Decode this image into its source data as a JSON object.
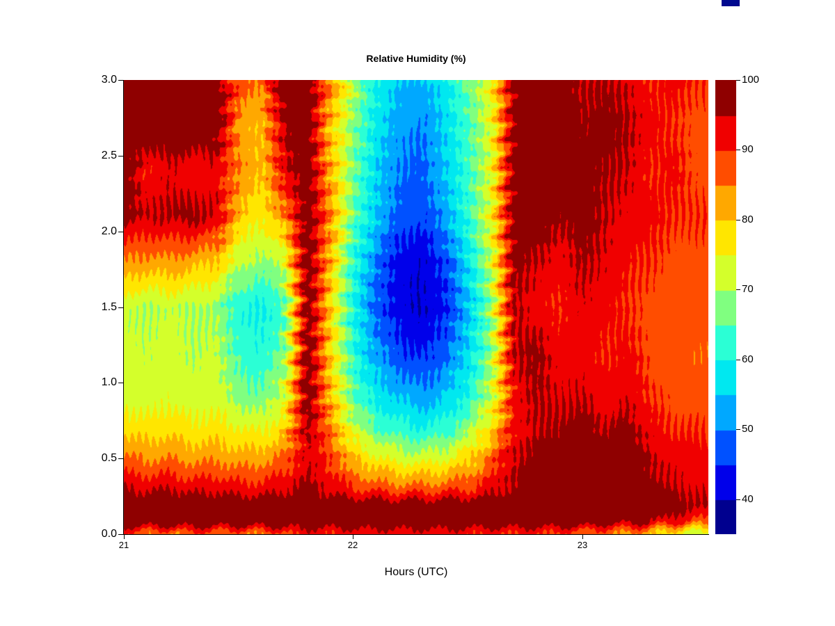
{
  "window": {
    "background": "#ffffff",
    "artifact_color": "#000a8f"
  },
  "chart_data": {
    "type": "heatmap",
    "title": "Relative Humidity (%)",
    "xlabel": "Hours (UTC)",
    "ylabel": "",
    "x_range": [
      21.0,
      23.55
    ],
    "y_range": [
      0.0,
      3.0
    ],
    "x_ticks": [
      21,
      22,
      23
    ],
    "x_tick_labels": [
      "21",
      "22",
      "23"
    ],
    "y_ticks": [
      0.0,
      0.5,
      1.0,
      1.5,
      2.0,
      2.5,
      3.0
    ],
    "y_tick_labels": [
      "0.0",
      "0.5",
      "1.0",
      "1.5",
      "2.0",
      "2.5",
      "3.0"
    ],
    "grid_lines": false,
    "legend_position": "right-colorbar",
    "colorbar": {
      "min": 35,
      "max": 100,
      "step": 5,
      "ticks": [
        40,
        50,
        60,
        70,
        80,
        90,
        100
      ],
      "tick_labels": [
        "40",
        "50",
        "60",
        "70",
        "80",
        "90",
        "100"
      ],
      "band_colors": [
        "#00008F",
        "#0000EA",
        "#0051FF",
        "#00A8FF",
        "#00E8F0",
        "#2BFFD5",
        "#80FF80",
        "#D4FF2B",
        "#FFE600",
        "#FFA800",
        "#FF4D00",
        "#F00000",
        "#8F0000"
      ]
    },
    "grid": {
      "x": [
        21.0,
        21.1,
        21.2,
        21.3,
        21.4,
        21.5,
        21.6,
        21.7,
        21.8,
        21.9,
        22.0,
        22.1,
        22.2,
        22.3,
        22.4,
        22.5,
        22.6,
        22.7,
        22.8,
        22.9,
        23.0,
        23.1,
        23.2,
        23.3,
        23.4,
        23.5
      ],
      "y": [
        0.0,
        0.08,
        0.18,
        0.3,
        0.5,
        0.7,
        0.9,
        1.2,
        1.5,
        1.8,
        2.1,
        2.4,
        2.7,
        3.0
      ],
      "values": [
        [
          88,
          86,
          84,
          88,
          87,
          85,
          86,
          88,
          92,
          90,
          92,
          92,
          92,
          92,
          92,
          91,
          90,
          90,
          90,
          88,
          87,
          85,
          83,
          80,
          75,
          72
        ],
        [
          100,
          100,
          100,
          100,
          100,
          100,
          100,
          100,
          100,
          100,
          100,
          100,
          100,
          100,
          100,
          100,
          100,
          100,
          100,
          100,
          100,
          98,
          97,
          96,
          92,
          88
        ],
        [
          100,
          100,
          100,
          100,
          100,
          100,
          100,
          100,
          100,
          100,
          100,
          100,
          100,
          100,
          100,
          100,
          100,
          100,
          100,
          100,
          100,
          100,
          100,
          100,
          98,
          96
        ],
        [
          95,
          94,
          95,
          93,
          94,
          92,
          92,
          94,
          97,
          93,
          90,
          88,
          87,
          87,
          88,
          89,
          93,
          96,
          98,
          99,
          100,
          99,
          100,
          97,
          95,
          94
        ],
        [
          86,
          84,
          85,
          83,
          84,
          82,
          83,
          86,
          94,
          89,
          80,
          76,
          73,
          72,
          74,
          78,
          86,
          95,
          97,
          98,
          100,
          98,
          100,
          95,
          93,
          92
        ],
        [
          78,
          77,
          78,
          76,
          77,
          75,
          74,
          78,
          97,
          85,
          72,
          65,
          62,
          60,
          62,
          68,
          77,
          92,
          95,
          96,
          98,
          95,
          97,
          92,
          90,
          90
        ],
        [
          73,
          72,
          74,
          72,
          73,
          68,
          66,
          73,
          100,
          81,
          66,
          58,
          55,
          52,
          55,
          61,
          71,
          92,
          96,
          94,
          95,
          92,
          94,
          90,
          88,
          87
        ],
        [
          72,
          71,
          73,
          70,
          72,
          63,
          61,
          67,
          100,
          79,
          62,
          52,
          46,
          44,
          48,
          56,
          68,
          95,
          97,
          92,
          93,
          90,
          92,
          88,
          87,
          86
        ],
        [
          71,
          70,
          71,
          70,
          69,
          61,
          59,
          64,
          100,
          79,
          60,
          48,
          42,
          40,
          44,
          54,
          68,
          96,
          92,
          90,
          94,
          92,
          90,
          88,
          88,
          87
        ],
        [
          85,
          83,
          84,
          82,
          80,
          72,
          68,
          72,
          100,
          81,
          62,
          50,
          42,
          41,
          46,
          57,
          71,
          97,
          95,
          92,
          96,
          94,
          91,
          90,
          88,
          88
        ],
        [
          97,
          95,
          96,
          97,
          95,
          80,
          76,
          84,
          100,
          84,
          66,
          55,
          48,
          46,
          52,
          62,
          74,
          98,
          100,
          96,
          98,
          95,
          93,
          92,
          90,
          90
        ],
        [
          100,
          90,
          94,
          91,
          93,
          85,
          80,
          93,
          100,
          82,
          67,
          56,
          50,
          48,
          55,
          63,
          73,
          98,
          100,
          98,
          97,
          96,
          95,
          90,
          92,
          88
        ],
        [
          100,
          100,
          100,
          100,
          100,
          83,
          80,
          96,
          100,
          80,
          68,
          58,
          52,
          50,
          56,
          64,
          73,
          97,
          98,
          100,
          96,
          97,
          96,
          92,
          90,
          88
        ],
        [
          100,
          100,
          100,
          100,
          100,
          88,
          85,
          100,
          100,
          86,
          71,
          60,
          55,
          54,
          58,
          66,
          75,
          96,
          97,
          98,
          95,
          96,
          94,
          90,
          92,
          90
        ]
      ]
    }
  }
}
